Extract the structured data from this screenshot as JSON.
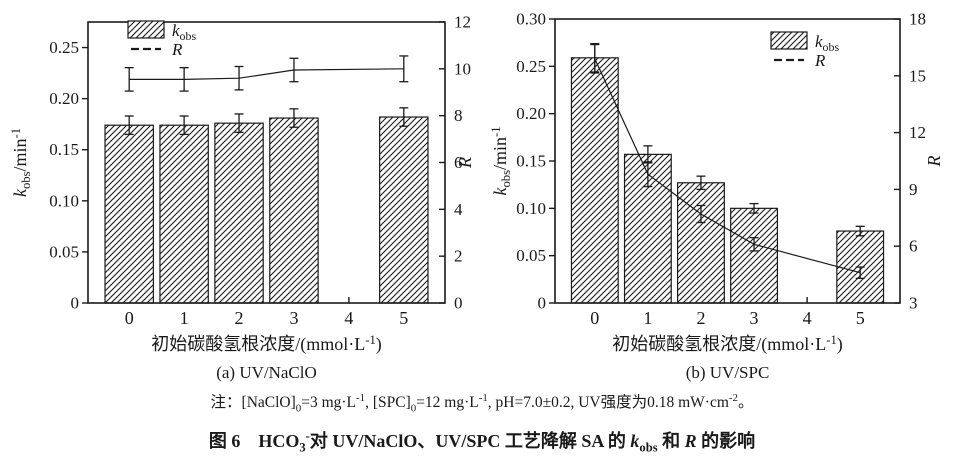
{
  "figure": {
    "note": "注：[NaClO]_{0}=3 mg·L^{-1}, [SPC]_{0}=12 mg·L^{-1}, pH=7.0±0.2, UV强度为0.18 mW·cm^{-2}。",
    "caption": "图 6　HCO_{3}^{-}对 UV/NaClO、UV/SPC 工艺降解 SA 的 ~k~_{obs} 和 ~R~ 的影响"
  },
  "colors": {
    "ink": "#1a1a1a",
    "background": "#ffffff"
  },
  "chart_data": [
    {
      "type": "bar",
      "subplot_label": "(a) UV/NaClO",
      "xlabel": "初始碳酸氢根浓度/(mmol·L^{-1})",
      "ylabel_left": "~k~_{obs}/min^{-1}",
      "ylabel_right": "~R~",
      "x": [
        0,
        1,
        2,
        3,
        5
      ],
      "xlim": [
        -0.75,
        5.75
      ],
      "xtick_values": [
        0,
        1,
        2,
        3,
        4,
        5
      ],
      "xtick_labels": [
        "0",
        "1",
        "2",
        "3",
        "4",
        "5"
      ],
      "ylim_left": [
        0,
        0.275
      ],
      "ytick_left_values": [
        0,
        0.05,
        0.1,
        0.15,
        0.2,
        0.25
      ],
      "ytick_left_labels": [
        "0",
        "0.05",
        "0.10",
        "0.15",
        "0.20",
        "0.25"
      ],
      "ylim_right": [
        0,
        12
      ],
      "ytick_right_values": [
        0,
        2,
        4,
        6,
        8,
        10,
        12
      ],
      "ytick_right_labels": [
        "0",
        "2",
        "4",
        "6",
        "8",
        "10",
        "12"
      ],
      "grid": false,
      "legend_position": "upper-left",
      "series": [
        {
          "name": "~k~_{obs}",
          "type": "bar",
          "axis": "left",
          "values": [
            0.174,
            0.174,
            0.176,
            0.181,
            0.182
          ],
          "errors": [
            0.009,
            0.009,
            0.009,
            0.009,
            0.009
          ]
        },
        {
          "name": "~R~",
          "type": "line",
          "axis": "right",
          "values": [
            9.55,
            9.55,
            9.6,
            9.95,
            10.0
          ],
          "errors": [
            0.5,
            0.5,
            0.5,
            0.5,
            0.55
          ]
        }
      ]
    },
    {
      "type": "bar",
      "subplot_label": "(b) UV/SPC",
      "xlabel": "初始碳酸氢根浓度/(mmol·L^{-1})",
      "ylabel_left": "~k~_{obs}/min^{-1}",
      "ylabel_right": "~R~",
      "x": [
        0,
        1,
        2,
        3,
        5
      ],
      "xlim": [
        -0.75,
        5.75
      ],
      "xtick_values": [
        0,
        1,
        2,
        3,
        4,
        5
      ],
      "xtick_labels": [
        "0",
        "1",
        "2",
        "3",
        "4",
        "5"
      ],
      "ylim_left": [
        0,
        0.3
      ],
      "ytick_left_values": [
        0,
        0.05,
        0.1,
        0.15,
        0.2,
        0.25,
        0.3
      ],
      "ytick_left_labels": [
        "0",
        "0.05",
        "0.10",
        "0.15",
        "0.20",
        "0.25",
        "0.30"
      ],
      "ylim_right": [
        3,
        18
      ],
      "ytick_right_values": [
        3,
        6,
        9,
        12,
        15,
        18
      ],
      "ytick_right_labels": [
        "3",
        "6",
        "9",
        "12",
        "15",
        "18"
      ],
      "grid": false,
      "legend_position": "upper-right",
      "series": [
        {
          "name": "~k~_{obs}",
          "type": "bar",
          "axis": "left",
          "values": [
            0.259,
            0.157,
            0.127,
            0.1,
            0.076
          ],
          "errors": [
            0.015,
            0.009,
            0.007,
            0.005,
            0.005
          ]
        },
        {
          "name": "~R~",
          "type": "line",
          "axis": "right",
          "values": [
            15.9,
            9.8,
            7.7,
            6.1,
            4.6
          ],
          "errors": [
            0.75,
            0.65,
            0.45,
            0.35,
            0.3
          ]
        }
      ]
    }
  ]
}
